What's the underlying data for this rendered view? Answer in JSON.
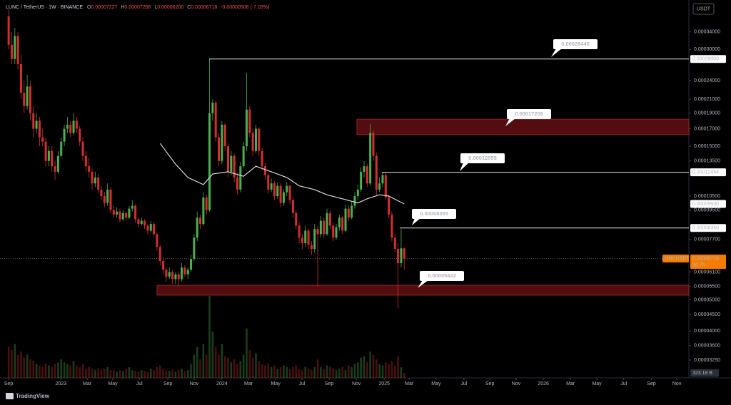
{
  "chart_data": {
    "type": "candlestick",
    "header": {
      "symbol": "LUNC / TetherUS · 1W · BINANCE",
      "fields": [
        [
          "O",
          "0.00007227"
        ],
        [
          "H",
          "0.00007268"
        ],
        [
          "L",
          "0.00006200"
        ],
        [
          "C",
          "0.00006718"
        ]
      ],
      "change": "-0.00000508 (-7.03%)"
    },
    "log_y": true,
    "ylim": [
      2.86e-05,
      0.00041
    ],
    "xlim": [
      -2.8,
      220.1
    ],
    "yticks": [
      {
        "value": 0.00034,
        "label": "0.00034000"
      },
      {
        "value": 0.0003,
        "label": "0.00030000"
      },
      {
        "value": 0.00024,
        "label": "0.00024000"
      },
      {
        "value": 0.00021,
        "label": "0.00021000"
      },
      {
        "value": 0.00019,
        "label": "0.00019000"
      },
      {
        "value": 0.00017,
        "label": "0.00017000"
      },
      {
        "value": 0.00015,
        "label": "0.00015000"
      },
      {
        "value": 0.000135,
        "label": "0.00013500"
      },
      {
        "value": 0.000105,
        "label": "0.00010500"
      },
      {
        "value": 9.5e-05,
        "label": "0.00009500"
      },
      {
        "value": 7.7e-05,
        "label": "0.00007700"
      },
      {
        "value": 6.1e-05,
        "label": "0.00006100"
      },
      {
        "value": 5.5e-05,
        "label": "0.00005500"
      },
      {
        "value": 5e-05,
        "label": "0.00005000"
      },
      {
        "value": 4.5e-05,
        "label": "0.00004500"
      },
      {
        "value": 4e-05,
        "label": "0.00004000"
      },
      {
        "value": 3.6e-05,
        "label": "0.00003600"
      },
      {
        "value": 3.25e-05,
        "label": "0.00003250"
      }
    ],
    "xticks": [
      {
        "value": 0,
        "label": "Sep"
      },
      {
        "value": 16.9,
        "label": "2023"
      },
      {
        "value": 25.4,
        "label": "Mar"
      },
      {
        "value": 33.7,
        "label": "May"
      },
      {
        "value": 42.3,
        "label": "Jul"
      },
      {
        "value": 51.5,
        "label": "Sep"
      },
      {
        "value": 60,
        "label": "Nov"
      },
      {
        "value": 69,
        "label": "2024"
      },
      {
        "value": 77.6,
        "label": "Mar"
      },
      {
        "value": 86.4,
        "label": "May"
      },
      {
        "value": 94.9,
        "label": "Jul"
      },
      {
        "value": 103.7,
        "label": "Sep"
      },
      {
        "value": 112.5,
        "label": "Nov"
      },
      {
        "value": 121.5,
        "label": "2025"
      },
      {
        "value": 129.6,
        "label": "Mar"
      },
      {
        "value": 138.3,
        "label": "May"
      },
      {
        "value": 147.3,
        "label": "Jul"
      },
      {
        "value": 155.7,
        "label": "Sep"
      },
      {
        "value": 164.2,
        "label": "Nov"
      },
      {
        "value": 173,
        "label": "2026"
      },
      {
        "value": 181.8,
        "label": "Mar"
      },
      {
        "value": 190.3,
        "label": "May"
      },
      {
        "value": 199,
        "label": "Jul"
      },
      {
        "value": 208,
        "label": "Sep"
      },
      {
        "value": 216.2,
        "label": "Nov"
      }
    ],
    "colors": {
      "up": "#4caf50",
      "down": "#d32f2f",
      "ma": "#d9d9d9",
      "zone": "#5c0f12",
      "zone_edge": "#9a2a2a",
      "level": "#e6e6e6",
      "last": "#f57c00"
    },
    "ohlc": [
      [
        0.00038,
        0.0004,
        0.0003,
        0.00031
      ],
      [
        0.00031,
        0.00034,
        0.00027,
        0.00028
      ],
      [
        0.00028,
        0.00035,
        0.00027,
        0.00033
      ],
      [
        0.00033,
        0.00034,
        0.00026,
        0.00027
      ],
      [
        0.00027,
        0.00029,
        0.00021,
        0.00022
      ],
      [
        0.00022,
        0.00024,
        0.00019,
        0.0002
      ],
      [
        0.0002,
        0.00025,
        0.000195,
        0.00023
      ],
      [
        0.00023,
        0.00024,
        0.00018,
        0.00019
      ],
      [
        0.00019,
        0.0002,
        0.00016,
        0.00017
      ],
      [
        0.00017,
        0.00019,
        0.000165,
        0.00018
      ],
      [
        0.00018,
        0.000185,
        0.00015,
        0.00016
      ],
      [
        0.00016,
        0.00017,
        0.00015,
        0.000155
      ],
      [
        0.000155,
        0.00016,
        0.00013,
        0.000135
      ],
      [
        0.000135,
        0.00015,
        0.00013,
        0.000145
      ],
      [
        0.000145,
        0.00015,
        0.000125,
        0.00013
      ],
      [
        0.00013,
        0.000135,
        0.000118,
        0.000125
      ],
      [
        0.000125,
        0.000145,
        0.000123,
        0.00014
      ],
      [
        0.00014,
        0.00016,
        0.000138,
        0.000155
      ],
      [
        0.000155,
        0.000175,
        0.00015,
        0.00017
      ],
      [
        0.00017,
        0.000185,
        0.000165,
        0.000175
      ],
      [
        0.000175,
        0.00018,
        0.00016,
        0.000165
      ],
      [
        0.000165,
        0.00019,
        0.000162,
        0.00018
      ],
      [
        0.00018,
        0.000185,
        0.000165,
        0.00017
      ],
      [
        0.00017,
        0.000173,
        0.00015,
        0.000155
      ],
      [
        0.000155,
        0.00016,
        0.000135,
        0.00014
      ],
      [
        0.00014,
        0.000145,
        0.000125,
        0.00013
      ],
      [
        0.00013,
        0.000138,
        0.00012,
        0.000125
      ],
      [
        0.000125,
        0.000128,
        0.00011,
        0.000115
      ],
      [
        0.000115,
        0.000125,
        0.000112,
        0.00012
      ],
      [
        0.00012,
        0.000123,
        0.000107,
        0.00011
      ],
      [
        0.00011,
        0.000113,
        0.000102,
        0.000105
      ],
      [
        0.000105,
        0.000108,
        9.7e-05,
        0.0001
      ],
      [
        0.0001,
        0.000115,
        9.8e-05,
        0.00011
      ],
      [
        0.00011,
        0.000112,
        9.3e-05,
        9.5e-05
      ],
      [
        9.5e-05,
        9.8e-05,
        9e-05,
        9.2e-05
      ],
      [
        9.2e-05,
        9.7e-05,
        9e-05,
        9.4e-05
      ],
      [
        9.4e-05,
        9.6e-05,
        8.7e-05,
        8.9e-05
      ],
      [
        8.9e-05,
        9.5e-05,
        8.8e-05,
        9.3e-05
      ],
      [
        9.3e-05,
        9.4e-05,
        8.8e-05,
        9e-05
      ],
      [
        9e-05,
        9.8e-05,
        8.9e-05,
        9.6e-05
      ],
      [
        9.6e-05,
        0.000102,
        9.4e-05,
        9.8e-05
      ],
      [
        9.8e-05,
        9.9e-05,
        8.7e-05,
        8.9e-05
      ],
      [
        8.9e-05,
        9e-05,
        8.4e-05,
        8.6e-05
      ],
      [
        8.6e-05,
        9e-05,
        8.5e-05,
        8.8e-05
      ],
      [
        8.8e-05,
        8.9e-05,
        8.3e-05,
        8.5e-05
      ],
      [
        8.5e-05,
        8.6e-05,
        8e-05,
        8.2e-05
      ],
      [
        8.2e-05,
        8.8e-05,
        8.1e-05,
        8.6e-05
      ],
      [
        8.6e-05,
        8.7e-05,
        7.9e-05,
        8e-05
      ],
      [
        8e-05,
        8.1e-05,
        7.1e-05,
        7.3e-05
      ],
      [
        7.3e-05,
        7.4e-05,
        6.4e-05,
        6.6e-05
      ],
      [
        6.6e-05,
        6.8e-05,
        6e-05,
        6.2e-05
      ],
      [
        6.2e-05,
        6.3e-05,
        5.7e-05,
        5.9e-05
      ],
      [
        5.9e-05,
        6.3e-05,
        5.8e-05,
        6.1e-05
      ],
      [
        6.1e-05,
        6.2e-05,
        5.6e-05,
        5.8e-05
      ],
      [
        5.8e-05,
        6.1e-05,
        5.6e-05,
        6e-05
      ],
      [
        6e-05,
        6.1e-05,
        5.5e-05,
        5.8e-05
      ],
      [
        5.8e-05,
        6.5e-05,
        5.7e-05,
        6.3e-05
      ],
      [
        6.3e-05,
        6.4e-05,
        5.9e-05,
        6e-05
      ],
      [
        6e-05,
        6.3e-05,
        5.8e-05,
        6.2e-05
      ],
      [
        6.2e-05,
        6.9e-05,
        6.1e-05,
        6.7e-05
      ],
      [
        6.7e-05,
        8e-05,
        6.6e-05,
        7.8e-05
      ],
      [
        7.8e-05,
        9.4e-05,
        7.6e-05,
        9e-05
      ],
      [
        9e-05,
        9.2e-05,
        8.3e-05,
        8.6e-05
      ],
      [
        8.6e-05,
        0.000108,
        8.5e-05,
        0.000104
      ],
      [
        0.000104,
        0.000106,
        9.2e-05,
        9.5e-05
      ],
      [
        9.5e-05,
        0.00028,
        9.4e-05,
        0.00019
      ],
      [
        0.00019,
        0.00021,
        0.00018,
        0.000205
      ],
      [
        0.000205,
        0.000208,
        0.000155,
        0.00016
      ],
      [
        0.00016,
        0.000165,
        0.00013,
        0.000135
      ],
      [
        0.000135,
        0.00018,
        0.000132,
        0.000175
      ],
      [
        0.000175,
        0.000178,
        0.000145,
        0.00015
      ],
      [
        0.00015,
        0.000153,
        0.00012,
        0.000125
      ],
      [
        0.000125,
        0.000145,
        0.000122,
        0.00014
      ],
      [
        0.00014,
        0.000142,
        0.000116,
        0.00012
      ],
      [
        0.00012,
        0.000124,
        0.000106,
        0.00011
      ],
      [
        0.00011,
        0.000134,
        0.000108,
        0.00013
      ],
      [
        0.00013,
        0.000155,
        0.000128,
        0.00015
      ],
      [
        0.00015,
        0.000254,
        0.000145,
        0.000195
      ],
      [
        0.000195,
        0.0002,
        0.00016,
        0.000165
      ],
      [
        0.000165,
        0.00017,
        0.00014,
        0.000145
      ],
      [
        0.000145,
        0.000175,
        0.000143,
        0.00017
      ],
      [
        0.00017,
        0.000172,
        0.00014,
        0.000145
      ],
      [
        0.000145,
        0.000148,
        0.000126,
        0.00013
      ],
      [
        0.00013,
        0.000133,
        0.000118,
        0.000122
      ],
      [
        0.000122,
        0.000124,
        0.000107,
        0.00011
      ],
      [
        0.00011,
        0.000119,
        0.000108,
        0.000115
      ],
      [
        0.000115,
        0.000117,
        0.000102,
        0.000105
      ],
      [
        0.000105,
        0.000116,
        0.000103,
        0.000113
      ],
      [
        0.000113,
        0.000115,
        9.7e-05,
        0.0001
      ],
      [
        0.0001,
        0.00011,
        9.8e-05,
        0.000108
      ],
      [
        0.000108,
        0.000116,
        0.000105,
        0.000113
      ],
      [
        0.000113,
        0.000114,
        9.9e-05,
        0.000102
      ],
      [
        0.000102,
        0.000104,
        9e-05,
        9.3e-05
      ],
      [
        9.3e-05,
        9.5e-05,
        8.3e-05,
        8.5e-05
      ],
      [
        8.5e-05,
        8.7e-05,
        7.5e-05,
        7.8e-05
      ],
      [
        7.8e-05,
        8e-05,
        7.2e-05,
        7.5e-05
      ],
      [
        7.5e-05,
        8.5e-05,
        7.3e-05,
        8.2e-05
      ],
      [
        8.2e-05,
        8.3e-05,
        7.2e-05,
        7.4e-05
      ],
      [
        7.4e-05,
        7.6e-05,
        6.9e-05,
        7.2e-05
      ],
      [
        7.2e-05,
        8.6e-05,
        7e-05,
        8.3e-05
      ],
      [
        8.3e-05,
        8.5e-05,
        5.5e-05,
        8e-05
      ],
      [
        8e-05,
        9.1e-05,
        7.8e-05,
        8.8e-05
      ],
      [
        8.8e-05,
        9e-05,
        7.8e-05,
        8e-05
      ],
      [
        8e-05,
        9.6e-05,
        7.9e-05,
        9.3e-05
      ],
      [
        9.3e-05,
        9.5e-05,
        8.3e-05,
        8.5e-05
      ],
      [
        8.5e-05,
        8.7e-05,
        7.6e-05,
        7.8e-05
      ],
      [
        7.8e-05,
        8.6e-05,
        7.7e-05,
        8.4e-05
      ],
      [
        8.4e-05,
        9.2e-05,
        8.2e-05,
        9e-05
      ],
      [
        9e-05,
        9.1e-05,
        8e-05,
        8.2e-05
      ],
      [
        8.2e-05,
        9.9e-05,
        8.1e-05,
        9.6e-05
      ],
      [
        9.6e-05,
        9.8e-05,
        8.8e-05,
        9e-05
      ],
      [
        9e-05,
        0.000101,
        8.9e-05,
        9.8e-05
      ],
      [
        9.8e-05,
        0.000108,
        9.6e-05,
        0.000105
      ],
      [
        0.000105,
        0.000114,
        0.000102,
        0.00011
      ],
      [
        0.00011,
        0.000129,
        0.000108,
        0.000125
      ],
      [
        0.000125,
        0.000135,
        0.00012,
        0.00013
      ],
      [
        0.00013,
        0.000132,
        0.000112,
        0.000115
      ],
      [
        0.000115,
        0.000176,
        0.000113,
        0.000165
      ],
      [
        0.000165,
        0.000168,
        0.000135,
        0.00014
      ],
      [
        0.00014,
        0.000143,
        0.000106,
        0.00011
      ],
      [
        0.00011,
        0.00012,
        0.000108,
        0.000115
      ],
      [
        0.000115,
        0.000125,
        0.000112,
        0.000122
      ],
      [
        0.000122,
        0.000124,
        0.000102,
        0.000104
      ],
      [
        0.000104,
        0.000106,
        9e-05,
        9.2e-05
      ],
      [
        9.2e-05,
        9.4e-05,
        7.6e-05,
        7.8e-05
      ],
      [
        7.8e-05,
        8e-05,
        7e-05,
        7.2e-05
      ],
      [
        7.2e-05,
        7.5e-05,
        4.7e-05,
        6.5e-05
      ],
      [
        6.5e-05,
        8.3e-05,
        6.3e-05,
        7.227e-05
      ],
      [
        7.227e-05,
        7.268e-05,
        6.2e-05,
        6.718e-05
      ]
    ],
    "volume": [
      2000,
      1800,
      2200,
      1500,
      1700,
      1300,
      1500,
      1200,
      1100,
      900,
      800,
      700,
      900,
      800,
      700,
      900,
      1000,
      1200,
      1000,
      900,
      800,
      1100,
      800,
      700,
      900,
      600,
      700,
      600,
      500,
      600,
      500,
      600,
      700,
      500,
      500,
      400,
      500,
      450,
      600,
      700,
      500,
      450,
      400,
      500,
      450,
      400,
      600,
      500,
      700,
      800,
      600,
      500,
      450,
      550,
      400,
      500,
      600,
      450,
      500,
      900,
      1500,
      2000,
      1200,
      2200,
      1500,
      5300,
      3000,
      2000,
      1500,
      2200,
      1400,
      1300,
      1000,
      1200,
      900,
      1100,
      1500,
      3200,
      1800,
      1300,
      1600,
      1100,
      900,
      800,
      900,
      700,
      800,
      600,
      700,
      800,
      700,
      600,
      700,
      800,
      600,
      500,
      700,
      600,
      500,
      700,
      1200,
      700,
      600,
      800,
      700,
      600,
      500,
      600,
      700,
      500,
      800,
      700,
      900,
      1000,
      1300,
      1400,
      1000,
      1700,
      1500,
      1200,
      900,
      800,
      1000,
      900,
      1100,
      800,
      1400,
      700,
      323.18
    ],
    "volume_label": {
      "value": 323.18,
      "label": "323.18 B"
    },
    "ma": {
      "x": [
        49,
        54,
        58,
        63,
        66,
        71,
        76,
        80,
        85,
        90,
        94,
        99,
        103,
        108,
        113,
        116,
        120,
        123,
        128
      ],
      "values": [
        0.000153,
        0.000132,
        0.00012,
        0.000114,
        0.000123,
        0.000125,
        0.000121,
        0.00013,
        0.000125,
        0.00012,
        0.000113,
        0.00011,
        0.000106,
        0.000103,
        0.0001,
        0.000103,
        0.000106,
        0.000105,
        9.93e-05
      ],
      "label": "0.00009930"
    },
    "levels": [
      {
        "value": 0.00028,
        "label": "0.00028000"
      },
      {
        "value": 0.00012454,
        "label": "0.00012454"
      },
      {
        "value": 8.36e-05,
        "label": "0.00008360"
      }
    ],
    "zones": [
      {
        "low": 0.000163,
        "high": 0.000182
      },
      {
        "low": 5.17e-05,
        "high": 5.55e-05
      }
    ],
    "annotations": [
      "0.00028445",
      "0.00017209",
      "0.00012555",
      "0.00008393",
      "0.00005422"
    ],
    "last": {
      "value": 6.718e-05,
      "label": "0.00006718",
      "symbol": "LUNCUSDT",
      "countdown": "3d 7h"
    }
  },
  "ui": {
    "currency": "USDT",
    "brand": "TradingView"
  }
}
